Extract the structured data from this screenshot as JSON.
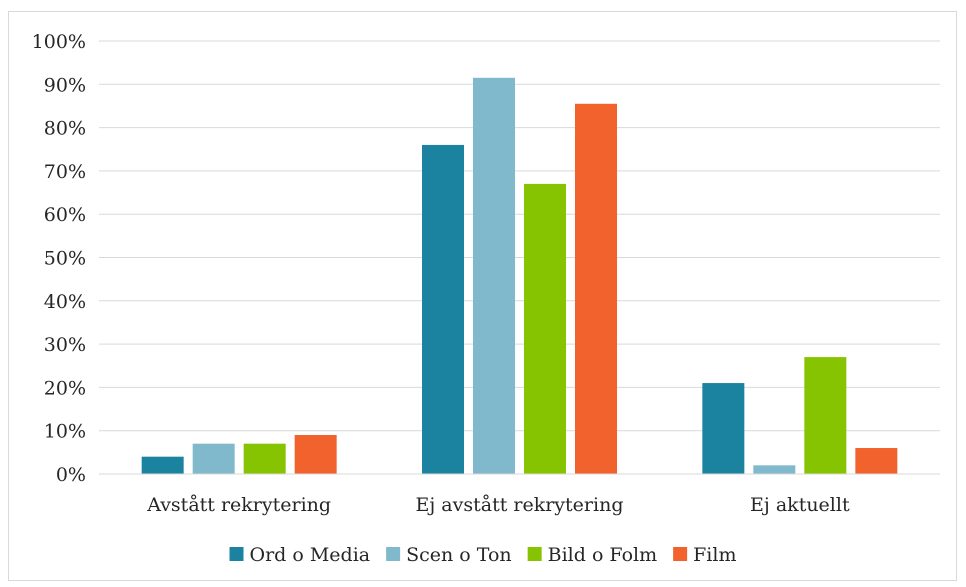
{
  "chart_data": {
    "type": "bar",
    "title": "",
    "xlabel": "",
    "ylabel": "",
    "ylim": [
      0,
      100
    ],
    "y_ticks": [
      0,
      10,
      20,
      30,
      40,
      50,
      60,
      70,
      80,
      90,
      100
    ],
    "y_tick_labels": [
      "0%",
      "10%",
      "20%",
      "30%",
      "40%",
      "50%",
      "60%",
      "70%",
      "80%",
      "90%",
      "100%"
    ],
    "grid": true,
    "legend_position": "bottom",
    "categories": [
      "Avstått rekrytering",
      "Ej avstått rekrytering",
      "Ej aktuellt"
    ],
    "series": [
      {
        "name": "Ord o Media",
        "color": "#1b82a0",
        "values": [
          4,
          76,
          21
        ]
      },
      {
        "name": "Scen o Ton",
        "color": "#80b9cb",
        "values": [
          7,
          91.5,
          2
        ]
      },
      {
        "name": "Bild o Folm",
        "color": "#86c300",
        "values": [
          7,
          67,
          27
        ]
      },
      {
        "name": "Film",
        "color": "#f2622d",
        "values": [
          9,
          85.5,
          6
        ]
      }
    ]
  }
}
